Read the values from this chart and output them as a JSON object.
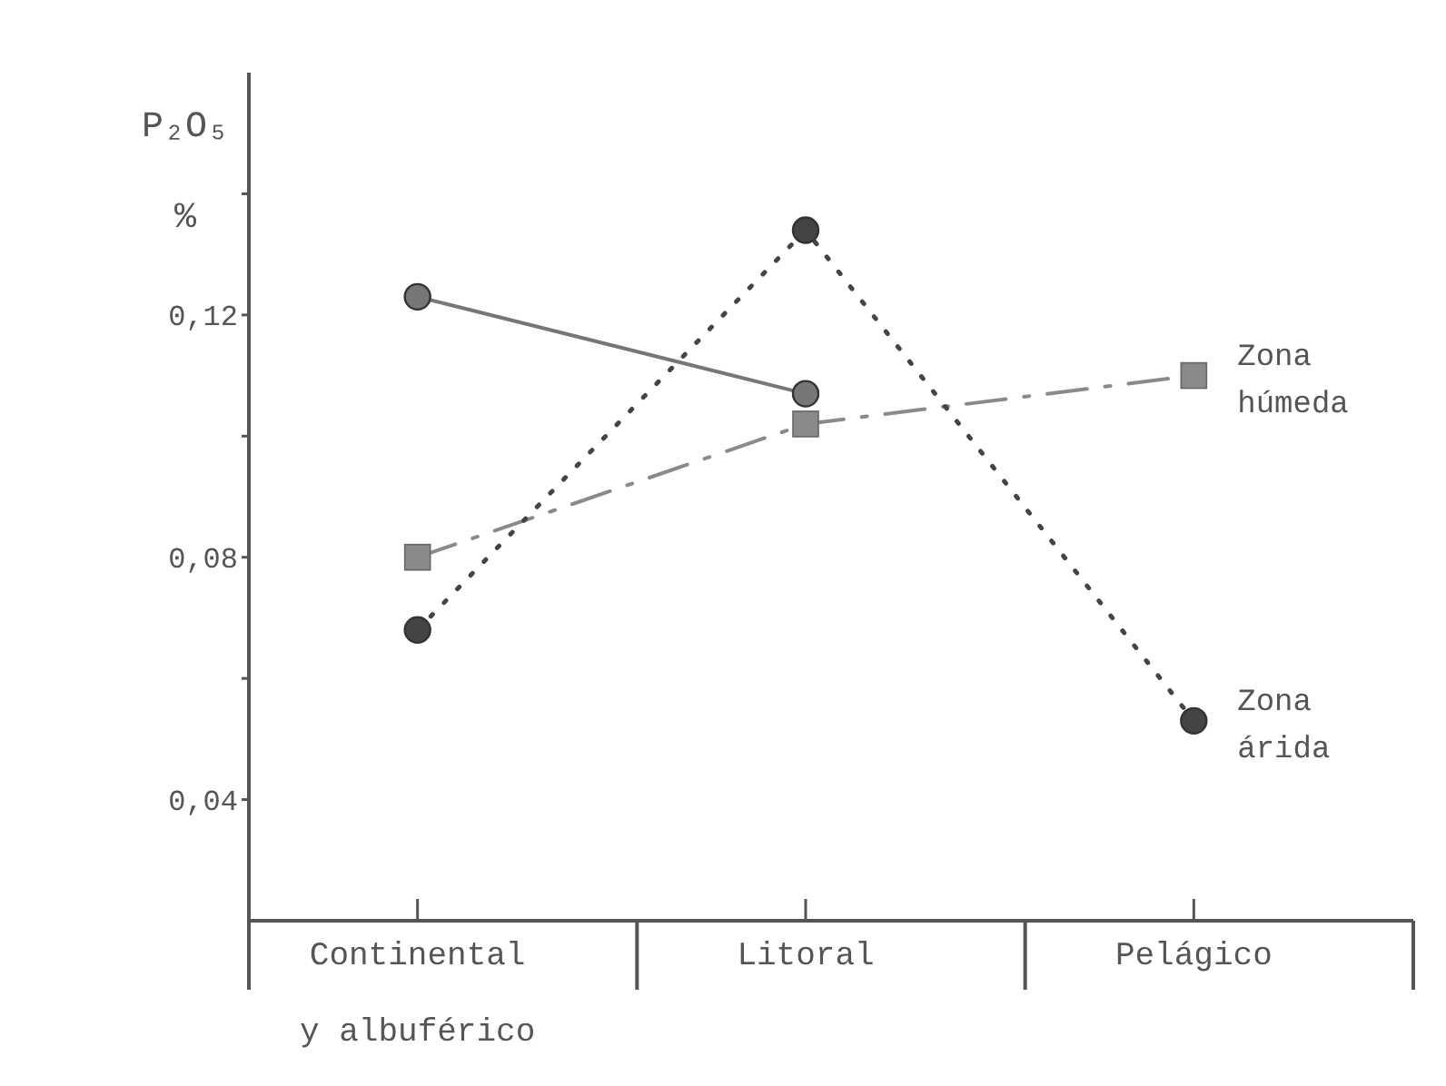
{
  "chart_data": {
    "type": "line",
    "ylabel": "P₂O₅ %",
    "categories": [
      "Continental y albuférico",
      "Litoral",
      "Pelágico"
    ],
    "series": [
      {
        "color": "#777777",
        "values": [
          0.123,
          0.107,
          null
        ],
        "marker": "circle",
        "line_style": "solid"
      },
      {
        "name": "Zona húmeda",
        "color": "#8a8a8a",
        "values": [
          0.08,
          0.102,
          0.11
        ],
        "marker": "square",
        "line_style": "dashed"
      },
      {
        "name": "Zona árida",
        "color": "#444444",
        "values": [
          0.068,
          0.134,
          0.053
        ],
        "marker": "circle",
        "line_style": "dotted"
      }
    ],
    "ylim": [
      0.02,
      0.16
    ],
    "yticks": [
      {
        "value": 0.04,
        "label": "0,04"
      },
      {
        "value": 0.06,
        "label": null
      },
      {
        "value": 0.08,
        "label": "0,08"
      },
      {
        "value": 0.1,
        "label": null
      },
      {
        "value": 0.12,
        "label": "0,12"
      },
      {
        "value": 0.14,
        "label": null
      }
    ],
    "grid": false
  }
}
